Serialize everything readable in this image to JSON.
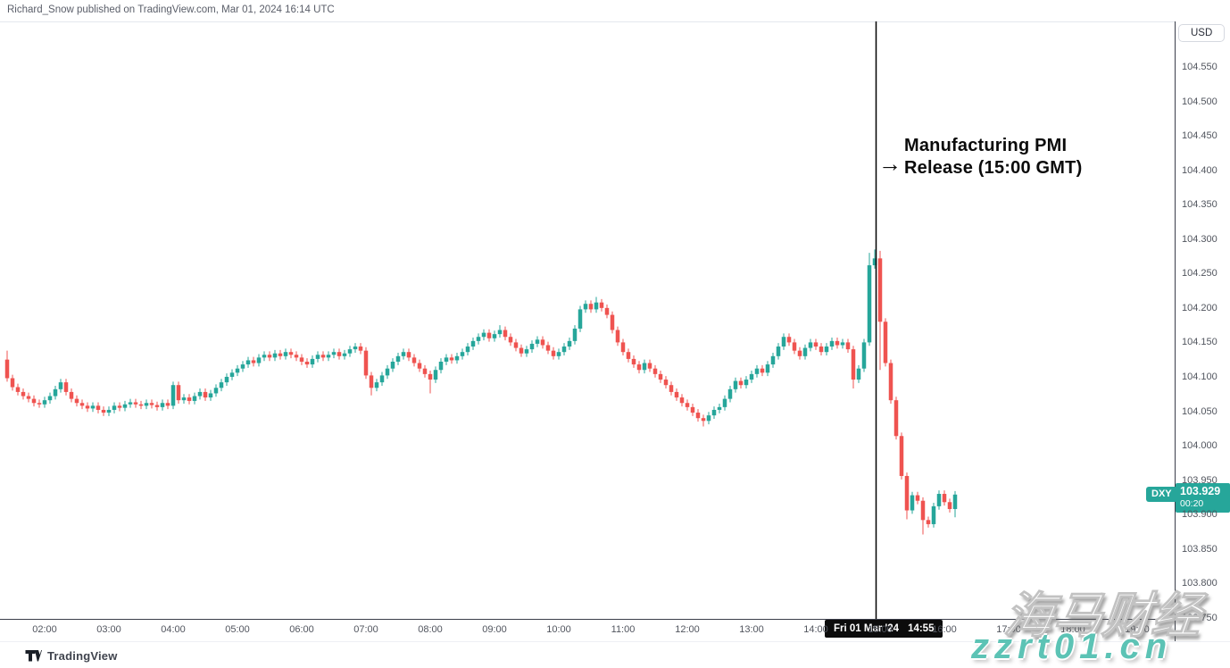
{
  "byline": "Richard_Snow published on TradingView.com, Mar 01, 2024 16:14 UTC",
  "currency_button": "USD",
  "symbol_chip": "DXY",
  "price_badge": {
    "price": "103.929",
    "countdown": "00:20"
  },
  "time_badge": {
    "date": "Fri 01 Mar '24",
    "time": "14:55"
  },
  "annotation": {
    "arrow": "→",
    "line1": "Manufacturing PMI",
    "line2": "Release (15:00 GMT)"
  },
  "footer": {
    "brand": "TradingView"
  },
  "watermark": {
    "cn": "海马财经",
    "site": "zzrt01.cn"
  },
  "chart_data": {
    "type": "candlestick",
    "symbol": "DXY",
    "quote_currency": "USD",
    "interval_minutes": 5,
    "start_time": "01:25",
    "last_price": 103.929,
    "event_line_time": "14:55",
    "event_label": "Manufacturing PMI Release (15:00 GMT)",
    "price_axis": {
      "ticks": [
        "104.550",
        "104.500",
        "104.450",
        "104.400",
        "104.350",
        "104.300",
        "104.250",
        "104.200",
        "104.150",
        "104.100",
        "104.050",
        "104.000",
        "103.950",
        "103.900",
        "103.850",
        "103.800",
        "103.750"
      ],
      "min": 103.75,
      "max": 104.58
    },
    "time_axis": {
      "ticks": [
        "02:00",
        "03:00",
        "04:00",
        "05:00",
        "06:00",
        "07:00",
        "08:00",
        "09:00",
        "10:00",
        "11:00",
        "12:00",
        "13:00",
        "14:00",
        "15:00",
        "16:00",
        "17:00",
        "18:00",
        "19:00"
      ]
    },
    "colors": {
      "up": "#26a69a",
      "down": "#ef5350",
      "event_line": "#000000"
    },
    "first_open": 104.125,
    "open_rule": "previous_close",
    "default_wick": 0.005,
    "closes": [
      104.098,
      104.085,
      104.078,
      104.072,
      104.068,
      104.062,
      104.06,
      104.066,
      104.072,
      104.082,
      104.092,
      104.078,
      104.068,
      104.062,
      104.058,
      104.054,
      104.058,
      104.052,
      104.048,
      104.052,
      104.058,
      104.055,
      104.06,
      104.063,
      104.06,
      104.058,
      104.062,
      104.059,
      104.056,
      104.062,
      104.058,
      104.088,
      104.066,
      104.07,
      104.065,
      104.072,
      104.078,
      104.07,
      104.076,
      104.084,
      104.092,
      104.1,
      104.106,
      104.112,
      104.118,
      104.124,
      104.12,
      104.128,
      104.132,
      104.128,
      104.134,
      104.13,
      104.136,
      104.132,
      104.128,
      104.122,
      104.118,
      104.126,
      104.132,
      104.128,
      104.132,
      104.136,
      104.13,
      104.134,
      104.14,
      104.144,
      104.138,
      104.102,
      104.084,
      104.092,
      104.102,
      104.112,
      104.122,
      104.13,
      104.136,
      104.128,
      104.12,
      104.112,
      104.104,
      104.096,
      104.11,
      104.122,
      104.128,
      104.124,
      104.13,
      104.136,
      104.144,
      104.152,
      104.158,
      104.164,
      104.156,
      104.162,
      104.168,
      104.158,
      104.15,
      104.142,
      104.134,
      104.14,
      104.148,
      104.154,
      104.146,
      104.138,
      104.13,
      104.136,
      104.144,
      104.152,
      104.17,
      104.198,
      104.206,
      104.198,
      104.208,
      104.2,
      104.19,
      104.168,
      104.15,
      104.136,
      104.126,
      104.118,
      104.11,
      104.12,
      104.112,
      104.104,
      104.096,
      104.088,
      104.078,
      104.07,
      104.062,
      104.056,
      104.048,
      104.04,
      104.036,
      104.044,
      104.052,
      104.056,
      104.068,
      104.082,
      104.094,
      104.088,
      104.096,
      104.104,
      104.112,
      104.106,
      104.118,
      104.13,
      104.144,
      104.158,
      104.15,
      104.138,
      104.13,
      104.142,
      104.15,
      104.144,
      104.136,
      104.144,
      104.152,
      104.146,
      104.15,
      104.14,
      104.096,
      104.112,
      104.15,
      104.262,
      104.272,
      104.18,
      104.12,
      104.066,
      104.014,
      103.956,
      103.906,
      103.928,
      103.92,
      103.892,
      103.886,
      103.912,
      103.93,
      103.918,
      103.908,
      103.929
    ],
    "wick_overrides": {
      "0": {
        "high": 104.138
      },
      "68": {
        "low": 104.073
      },
      "79": {
        "low": 104.076
      },
      "92": {
        "high": 104.175
      },
      "110": {
        "high": 104.216
      },
      "130": {
        "low": 104.028
      },
      "158": {
        "low": 104.083
      },
      "161": {
        "high": 104.28
      },
      "162": {
        "high": 104.285
      },
      "163": {
        "high": 104.283,
        "low": 104.11
      },
      "168": {
        "low": 103.893
      },
      "171": {
        "low": 103.871
      },
      "177": {
        "low": 103.896
      }
    }
  }
}
